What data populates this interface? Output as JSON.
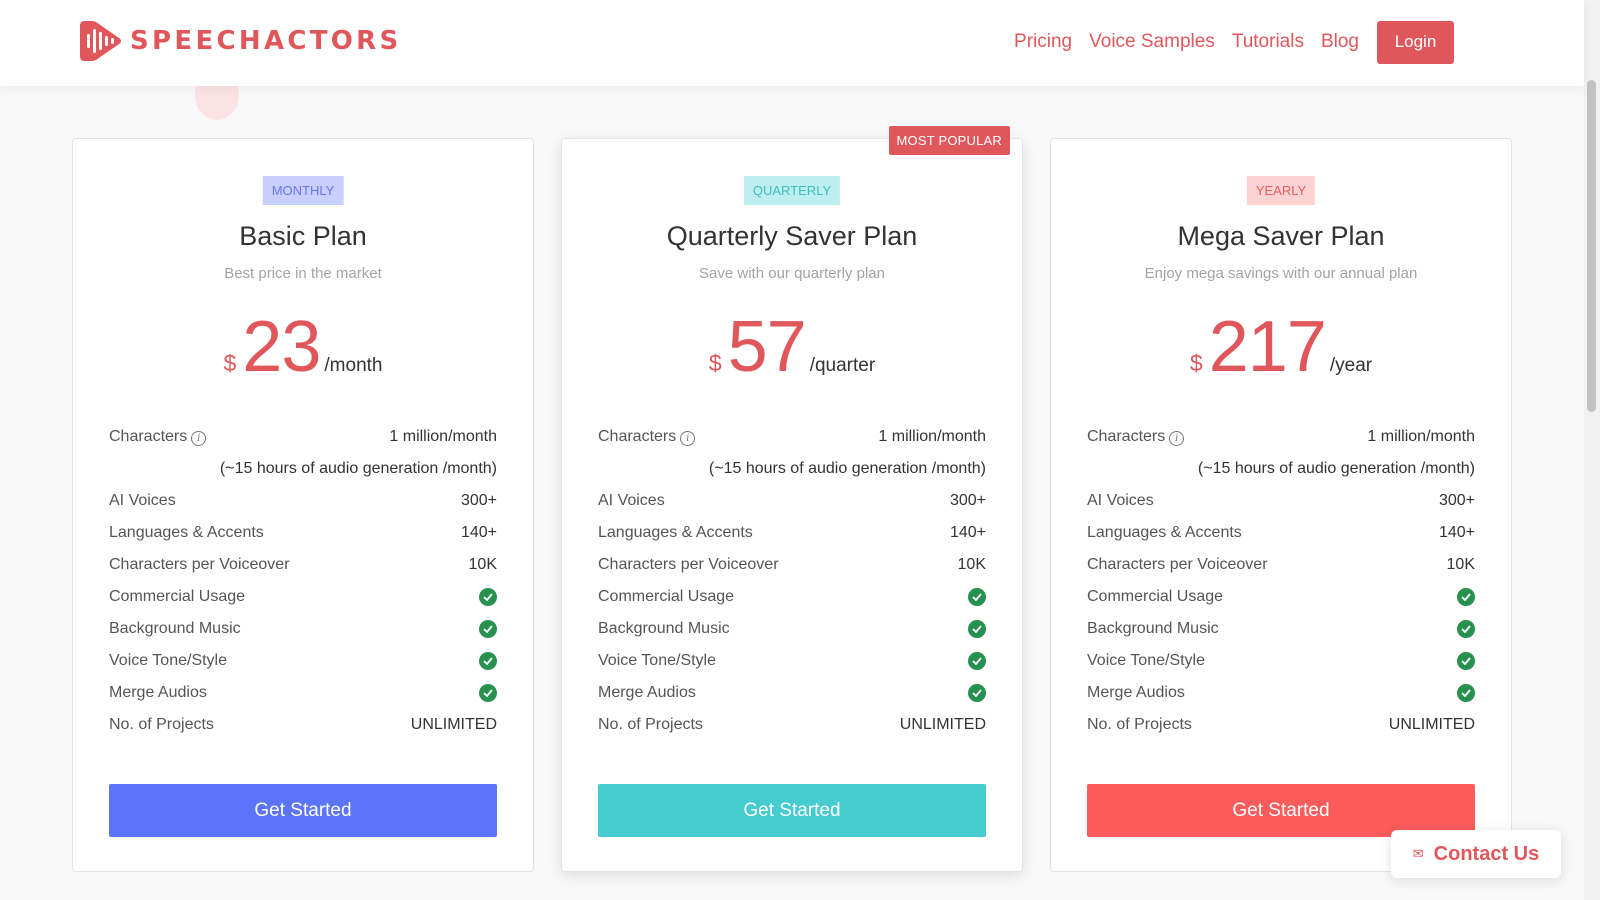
{
  "brand": {
    "name": "SPEECHACTORS",
    "color": "#e0575b",
    "logo_icon": "waveform-play-icon"
  },
  "nav": {
    "links": [
      "Pricing",
      "Voice Samples",
      "Tutorials",
      "Blog"
    ],
    "login_label": "Login"
  },
  "contact": {
    "label": "Contact Us",
    "icon": "envelope-icon"
  },
  "plans": [
    {
      "tag": "MONTHLY",
      "name": "Basic Plan",
      "subtitle": "Best price in the market",
      "currency": "$",
      "amount": "23",
      "period": "/month",
      "cta": "Get Started",
      "badge": "",
      "accent": "#5c74fa"
    },
    {
      "tag": "QUARTERLY",
      "name": "Quarterly Saver Plan",
      "subtitle": "Save with our quarterly plan",
      "currency": "$",
      "amount": "57",
      "period": "/quarter",
      "cta": "Get Started",
      "badge": "MOST POPULAR",
      "accent": "#45ccd0"
    },
    {
      "tag": "YEARLY",
      "name": "Mega Saver Plan",
      "subtitle": "Enjoy mega savings with our annual plan",
      "currency": "$",
      "amount": "217",
      "period": "/year",
      "cta": "Get Started",
      "badge": "",
      "accent": "#fb5b5b"
    }
  ],
  "features": {
    "characters_label": "Characters",
    "characters_value": "1 million/month",
    "characters_note": "(~15 hours of audio generation /month)",
    "ai_voices_label": "AI Voices",
    "ai_voices_value": "300+",
    "languages_label": "Languages & Accents",
    "languages_value": "140+",
    "chars_per_vo_label": "Characters per Voiceover",
    "chars_per_vo_value": "10K",
    "commercial_label": "Commercial Usage",
    "bg_music_label": "Background Music",
    "tone_label": "Voice Tone/Style",
    "merge_label": "Merge Audios",
    "projects_label": "No. of Projects",
    "projects_value": "UNLIMITED"
  }
}
